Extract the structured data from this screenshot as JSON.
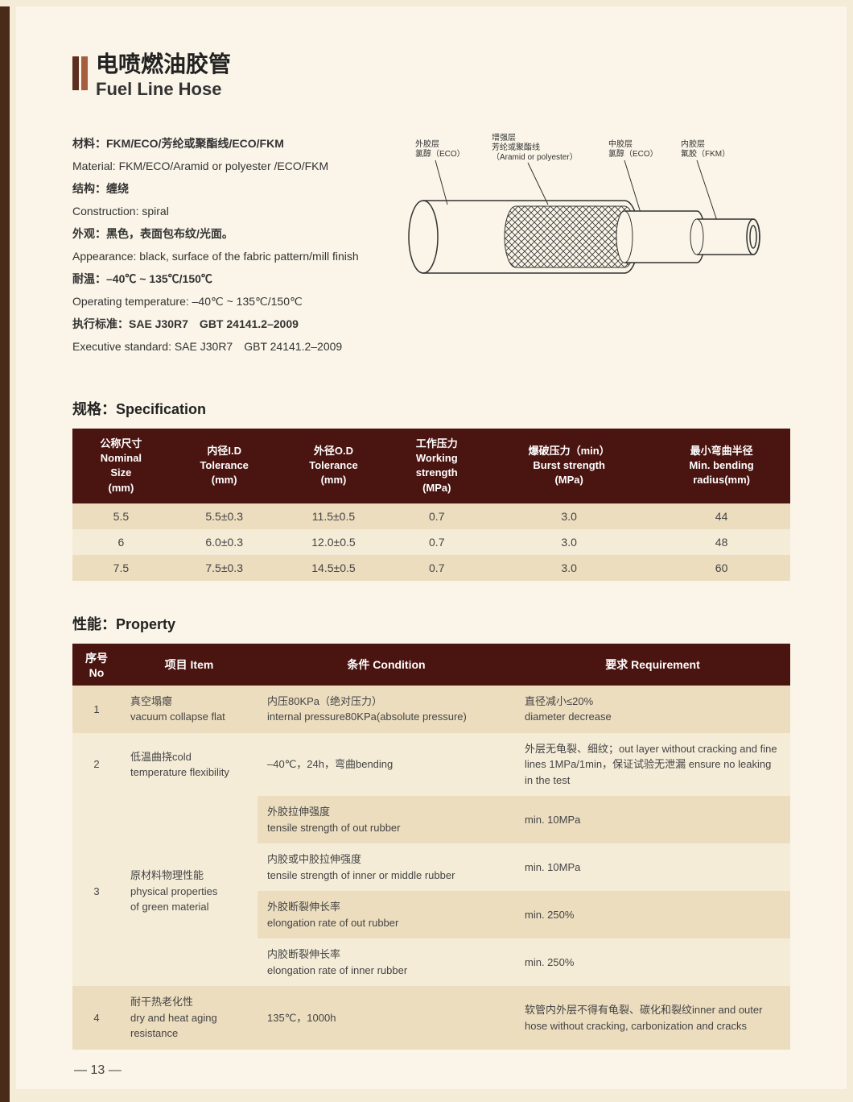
{
  "title": {
    "cn": "电喷燃油胶管",
    "en": "Fuel Line Hose"
  },
  "info": {
    "material_cn": "材料：FKM/ECO/芳纶或聚酯线/ECO/FKM",
    "material_en": "Material: FKM/ECO/Aramid or polyester /ECO/FKM",
    "construction_cn": "结构：缠绕",
    "construction_en": "Construction: spiral",
    "appearance_cn": "外观：黑色，表面包布纹/光面。",
    "appearance_en": "Appearance: black, surface of the fabric pattern/mill finish",
    "temp_cn": "耐温：–40℃ ~ 135℃/150℃",
    "temp_en": "Operating temperature: –40℃ ~ 135℃/150℃",
    "standard_cn": "执行标准：SAE J30R7　GBT 24141.2–2009",
    "standard_en": "Executive standard: SAE J30R7　GBT 24141.2–2009"
  },
  "diagram_labels": {
    "l1a": "外胶层",
    "l1b": "氯醇（ECO）",
    "l2a": "增强层",
    "l2b": "芳纶或聚酯线",
    "l2c": "（Aramid or polyester）",
    "l3a": "中胶层",
    "l3b": "氯醇（ECO）",
    "l4a": "内胶层",
    "l4b": "氟胶（FKM）"
  },
  "spec": {
    "title": "规格：Specification",
    "headers": [
      "公称尺寸\nNominal\nSize\n(mm)",
      "内径I.D\nTolerance\n(mm)",
      "外径O.D\nTolerance\n(mm)",
      "工作压力\nWorking\nstrength\n(MPa)",
      "爆破压力（min）\nBurst strength\n(MPa)",
      "最小弯曲半径\nMin. bending\nradius(mm)"
    ],
    "rows": [
      [
        "5.5",
        "5.5±0.3",
        "11.5±0.5",
        "0.7",
        "3.0",
        "44"
      ],
      [
        "6",
        "6.0±0.3",
        "12.0±0.5",
        "0.7",
        "3.0",
        "48"
      ],
      [
        "7.5",
        "7.5±0.3",
        "14.5±0.5",
        "0.7",
        "3.0",
        "60"
      ]
    ]
  },
  "prop": {
    "title": "性能：Property",
    "headers": [
      "序号 No",
      "项目 Item",
      "条件 Condition",
      "要求 Requirement"
    ],
    "rows": [
      {
        "no": "1",
        "item": "真空塌瘪\nvacuum collapse flat",
        "cond": "内压80KPa（绝对压力）\ninternal pressure80KPa(absolute pressure)",
        "req": "直径减小≤20%\ndiameter decrease",
        "cls": "odd"
      },
      {
        "no": "2",
        "item": "低温曲挠cold\ntemperature flexibility",
        "cond": "–40℃，24h，弯曲bending",
        "req": "外层无龟裂、细纹；out layer without cracking and fine lines 1MPa/1min，保证试验无泄漏 ensure no leaking in the test",
        "cls": "even"
      },
      {
        "no": "3",
        "item": "原材料物理性能\nphysical properties\nof green material",
        "rowspan": 4,
        "sub": [
          {
            "cond": "外胶拉伸强度\ntensile strength of out rubber",
            "req": "min. 10MPa",
            "cls": "odd"
          },
          {
            "cond": "内胶或中胶拉伸强度\ntensile strength of inner or middle rubber",
            "req": "min. 10MPa",
            "cls": "even"
          },
          {
            "cond": "外胶断裂伸长率\nelongation rate of out rubber",
            "req": "min. 250%",
            "cls": "odd"
          },
          {
            "cond": "内胶断裂伸长率\nelongation rate of inner rubber",
            "req": "min. 250%",
            "cls": "even"
          }
        ]
      },
      {
        "no": "4",
        "item": "耐干热老化性\ndry and heat aging\nresistance",
        "cond": "135℃，1000h",
        "req": "软管内外层不得有龟裂、碳化和裂纹inner and outer hose without cracking, carbonization and cracks",
        "cls": "odd"
      }
    ]
  },
  "page_number": "— 13 —",
  "colors": {
    "header_bg": "#4a1410",
    "row_odd": "#ecddbf",
    "row_even": "#f5ecd8",
    "page_bg": "#faf5e8"
  }
}
